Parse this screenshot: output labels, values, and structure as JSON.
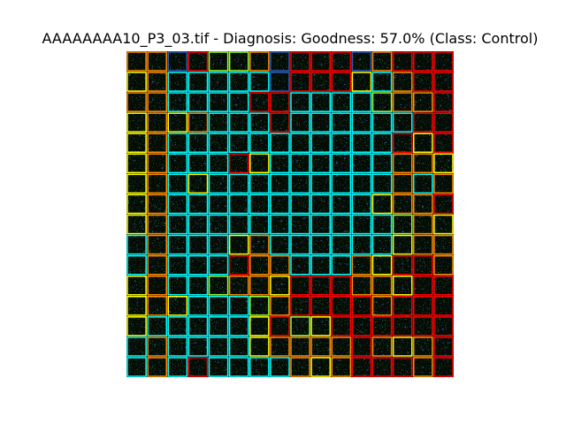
{
  "figure": {
    "title": "AAAAAAAA10_P3_03.tif - Diagnosis: Goodness: 57.0% (Class: Control)",
    "grid": {
      "rows": 16,
      "cols": 16
    },
    "colors": {
      "R": "#ff0000",
      "O": "#ff8c00",
      "Y": "#ffff00",
      "G": "#9aff3c",
      "C": "#00ffff",
      "B": "#2e5cb8",
      "background": "#050b05"
    },
    "tile_classes": [
      "OOBRGGOBRRRBORRR",
      "YOCCCCCBRRRYCORR",
      "OOCCCCRRCCCCGOOR",
      "YOYOCCCRCCCCCCRR",
      "YOCCCCCCCCCCCRYR",
      "YOCCCRYCCCCCCOOY",
      "YOCYCCCCCCCCCOCO",
      "YOCCCCCCCCCCYOOR",
      "YOCCCCCCCCCCCGOY",
      "COCCCYOCCCCCCYOO",
      "COCCCROOCCCOYRRO",
      "YOCCGOOYRRROOYRR",
      "YOYCCCGORRRRORRR",
      "YCCCCCYRGYRRRRRR",
      "COCCCCYOOOOROYOR",
      "COCRCCCCOYORRROR"
    ]
  }
}
